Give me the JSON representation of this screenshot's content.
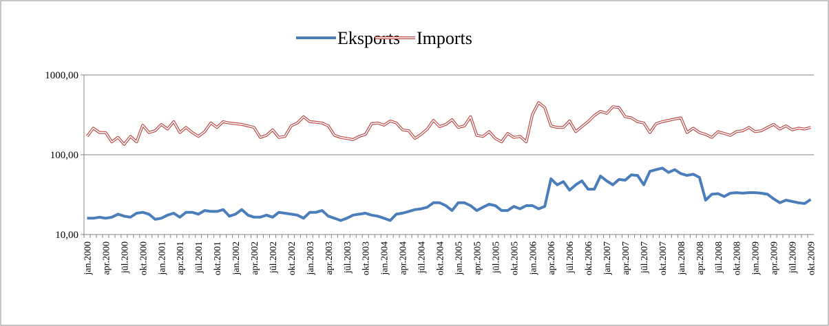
{
  "chart_data": {
    "type": "line",
    "log_scale": true,
    "grid": true,
    "legend": "top",
    "ylim": [
      10,
      1000
    ],
    "yticks": [
      {
        "value": 10,
        "label": "10,00"
      },
      {
        "value": 100,
        "label": "100,00"
      },
      {
        "value": 1000,
        "label": "1000,00"
      }
    ],
    "categories": [
      "jan.2000",
      null,
      null,
      "apr.2000",
      null,
      null,
      "jūl.2000",
      null,
      null,
      "okt.2000",
      null,
      null,
      "jan.2001",
      null,
      null,
      "apr.2001",
      null,
      null,
      "jūl.2001",
      null,
      null,
      "okt.2001",
      null,
      null,
      "jan.2002",
      null,
      null,
      "apr.2002",
      null,
      null,
      "jūl.2002",
      null,
      null,
      "okt.2002",
      null,
      null,
      "jan.2003",
      null,
      null,
      "apr.2003",
      null,
      null,
      "jūl.2003",
      null,
      null,
      "okt.2003",
      null,
      null,
      "jan.2004",
      null,
      null,
      "apr.2004",
      null,
      null,
      "jūl.2004",
      null,
      null,
      "okt.2004",
      null,
      null,
      "jan.2005",
      null,
      null,
      "apr.2005",
      null,
      null,
      "jūl.2005",
      null,
      null,
      "okt.2005",
      null,
      null,
      "jan.2006",
      null,
      null,
      "apr.2006",
      null,
      null,
      "jūl.2006",
      null,
      null,
      "okt.2006",
      null,
      null,
      "jan.2007",
      null,
      null,
      "apr.2007",
      null,
      null,
      "jūl.2007",
      null,
      null,
      "okt.2007",
      null,
      null,
      "jan.2008",
      null,
      null,
      "apr.2008",
      null,
      null,
      "jūl.2008",
      null,
      null,
      "okt.2008",
      null,
      null,
      "jan.2009",
      null,
      null,
      "apr.2009",
      null,
      null,
      "jūl.2009",
      null,
      null,
      "okt.2009"
    ],
    "series": [
      {
        "name": "Eksports",
        "color": "#4a7ebb",
        "values": [
          16,
          16,
          16.5,
          16,
          16.5,
          18,
          17,
          16.5,
          18.5,
          19,
          18,
          15.5,
          16,
          17.5,
          18.5,
          16.5,
          19,
          19,
          18,
          20,
          19.5,
          19.5,
          20.5,
          17,
          18,
          20.5,
          17.5,
          16.5,
          16.5,
          17.5,
          16.5,
          19,
          18.5,
          18,
          17.5,
          16,
          19,
          19,
          20,
          17,
          16,
          15,
          16,
          17.5,
          18,
          18.5,
          17.5,
          17,
          16,
          15,
          18,
          18.5,
          19.5,
          20.5,
          21,
          22,
          25,
          25,
          23,
          20,
          25,
          25,
          23,
          20,
          22,
          24,
          23,
          20,
          20,
          22.5,
          21,
          23,
          23,
          21,
          22.5,
          50,
          42,
          46,
          36,
          42,
          47,
          37,
          37,
          54,
          47,
          42,
          49,
          48,
          56,
          55,
          42,
          62,
          65,
          68,
          60,
          65,
          58,
          55,
          57,
          52,
          27,
          32,
          32.5,
          30,
          33,
          33.5,
          33,
          33.5,
          33.5,
          33,
          32,
          28,
          25,
          27,
          26,
          25,
          24.5,
          27.5
        ]
      },
      {
        "name": "Imports",
        "color": "#be4b48",
        "values": [
          170,
          215,
          190,
          190,
          145,
          165,
          135,
          170,
          145,
          235,
          190,
          200,
          240,
          210,
          260,
          190,
          220,
          190,
          170,
          195,
          250,
          220,
          260,
          250,
          245,
          240,
          230,
          220,
          165,
          175,
          205,
          165,
          170,
          230,
          250,
          300,
          260,
          255,
          250,
          230,
          175,
          165,
          160,
          155,
          170,
          180,
          245,
          250,
          235,
          265,
          250,
          205,
          200,
          160,
          180,
          210,
          270,
          225,
          240,
          275,
          220,
          230,
          300,
          175,
          170,
          195,
          160,
          145,
          185,
          165,
          170,
          145,
          320,
          450,
          390,
          230,
          220,
          220,
          265,
          195,
          225,
          260,
          310,
          350,
          330,
          400,
          390,
          300,
          290,
          260,
          250,
          190,
          245,
          260,
          270,
          280,
          290,
          190,
          215,
          190,
          180,
          165,
          195,
          185,
          175,
          195,
          200,
          220,
          195,
          200,
          220,
          240,
          210,
          230,
          205,
          215,
          210,
          220
        ]
      }
    ]
  }
}
